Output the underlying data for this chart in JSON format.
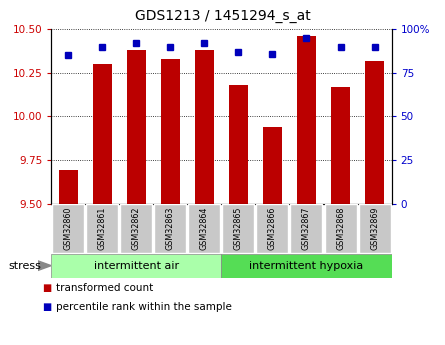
{
  "title": "GDS1213 / 1451294_s_at",
  "samples": [
    "GSM32860",
    "GSM32861",
    "GSM32862",
    "GSM32863",
    "GSM32864",
    "GSM32865",
    "GSM32866",
    "GSM32867",
    "GSM32868",
    "GSM32869"
  ],
  "bar_values": [
    9.69,
    10.3,
    10.38,
    10.33,
    10.38,
    10.18,
    9.94,
    10.46,
    10.17,
    10.32
  ],
  "percentile_values": [
    85,
    90,
    92,
    90,
    92,
    87,
    86,
    95,
    90,
    90
  ],
  "ylim": [
    9.5,
    10.5
  ],
  "yticks": [
    9.5,
    9.75,
    10.0,
    10.25,
    10.5
  ],
  "right_ylim": [
    0,
    100
  ],
  "right_yticks": [
    0,
    25,
    50,
    75,
    100
  ],
  "bar_color": "#bb0000",
  "dot_color": "#0000bb",
  "group1_label": "intermittent air",
  "group2_label": "intermittent hypoxia",
  "group1_color": "#aaffaa",
  "group2_color": "#55dd55",
  "group1_indices": [
    0,
    1,
    2,
    3,
    4
  ],
  "group2_indices": [
    5,
    6,
    7,
    8,
    9
  ],
  "stress_label": "stress",
  "legend_bar_label": "transformed count",
  "legend_dot_label": "percentile rank within the sample",
  "axis_label_color_left": "#cc0000",
  "axis_label_color_right": "#0000cc"
}
